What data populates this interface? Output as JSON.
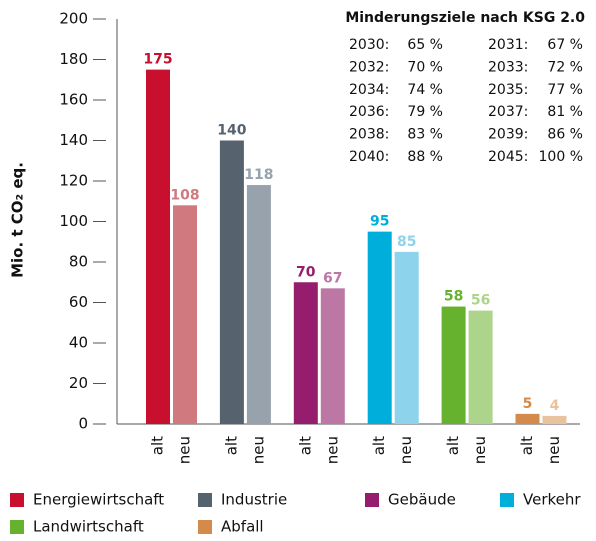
{
  "chart_data": {
    "type": "bar",
    "y_label": "Mio. t CO₂ eq.",
    "categories": [
      "alt",
      "neu"
    ],
    "series": [
      {
        "name": "Energiewirtschaft",
        "colors": [
          "#c8102e",
          "#d07a80"
        ],
        "values": [
          175,
          108
        ]
      },
      {
        "name": "Industrie",
        "colors": [
          "#56636f",
          "#97a2ad"
        ],
        "values": [
          140,
          118
        ]
      },
      {
        "name": "Gebäude",
        "colors": [
          "#961d6e",
          "#bc77a4"
        ],
        "values": [
          70,
          67
        ]
      },
      {
        "name": "Verkehr",
        "colors": [
          "#00aedb",
          "#8dd3ec"
        ],
        "values": [
          95,
          85
        ]
      },
      {
        "name": "Landwirtschaft",
        "colors": [
          "#66b22e",
          "#acd48a"
        ],
        "values": [
          58,
          56
        ]
      },
      {
        "name": "Abfall",
        "colors": [
          "#d48a4a",
          "#e9c39e"
        ],
        "values": [
          5,
          4
        ]
      }
    ],
    "ylim": [
      0,
      200
    ],
    "yticks": [
      0,
      20,
      40,
      60,
      80,
      100,
      120,
      140,
      160,
      180,
      200
    ],
    "annotation": {
      "title": "Minderungsziele nach KSG 2.0",
      "rows": [
        [
          "2030:",
          "65 %",
          "2031:",
          "67 %"
        ],
        [
          "2032:",
          "70 %",
          "2033:",
          "72 %"
        ],
        [
          "2034:",
          "74 %",
          "2035:",
          "77 %"
        ],
        [
          "2036:",
          "79 %",
          "2037:",
          "81 %"
        ],
        [
          "2038:",
          "83 %",
          "2039:",
          "86 %"
        ],
        [
          "2040:",
          "88 %",
          "2045:",
          "100 %"
        ]
      ]
    }
  }
}
